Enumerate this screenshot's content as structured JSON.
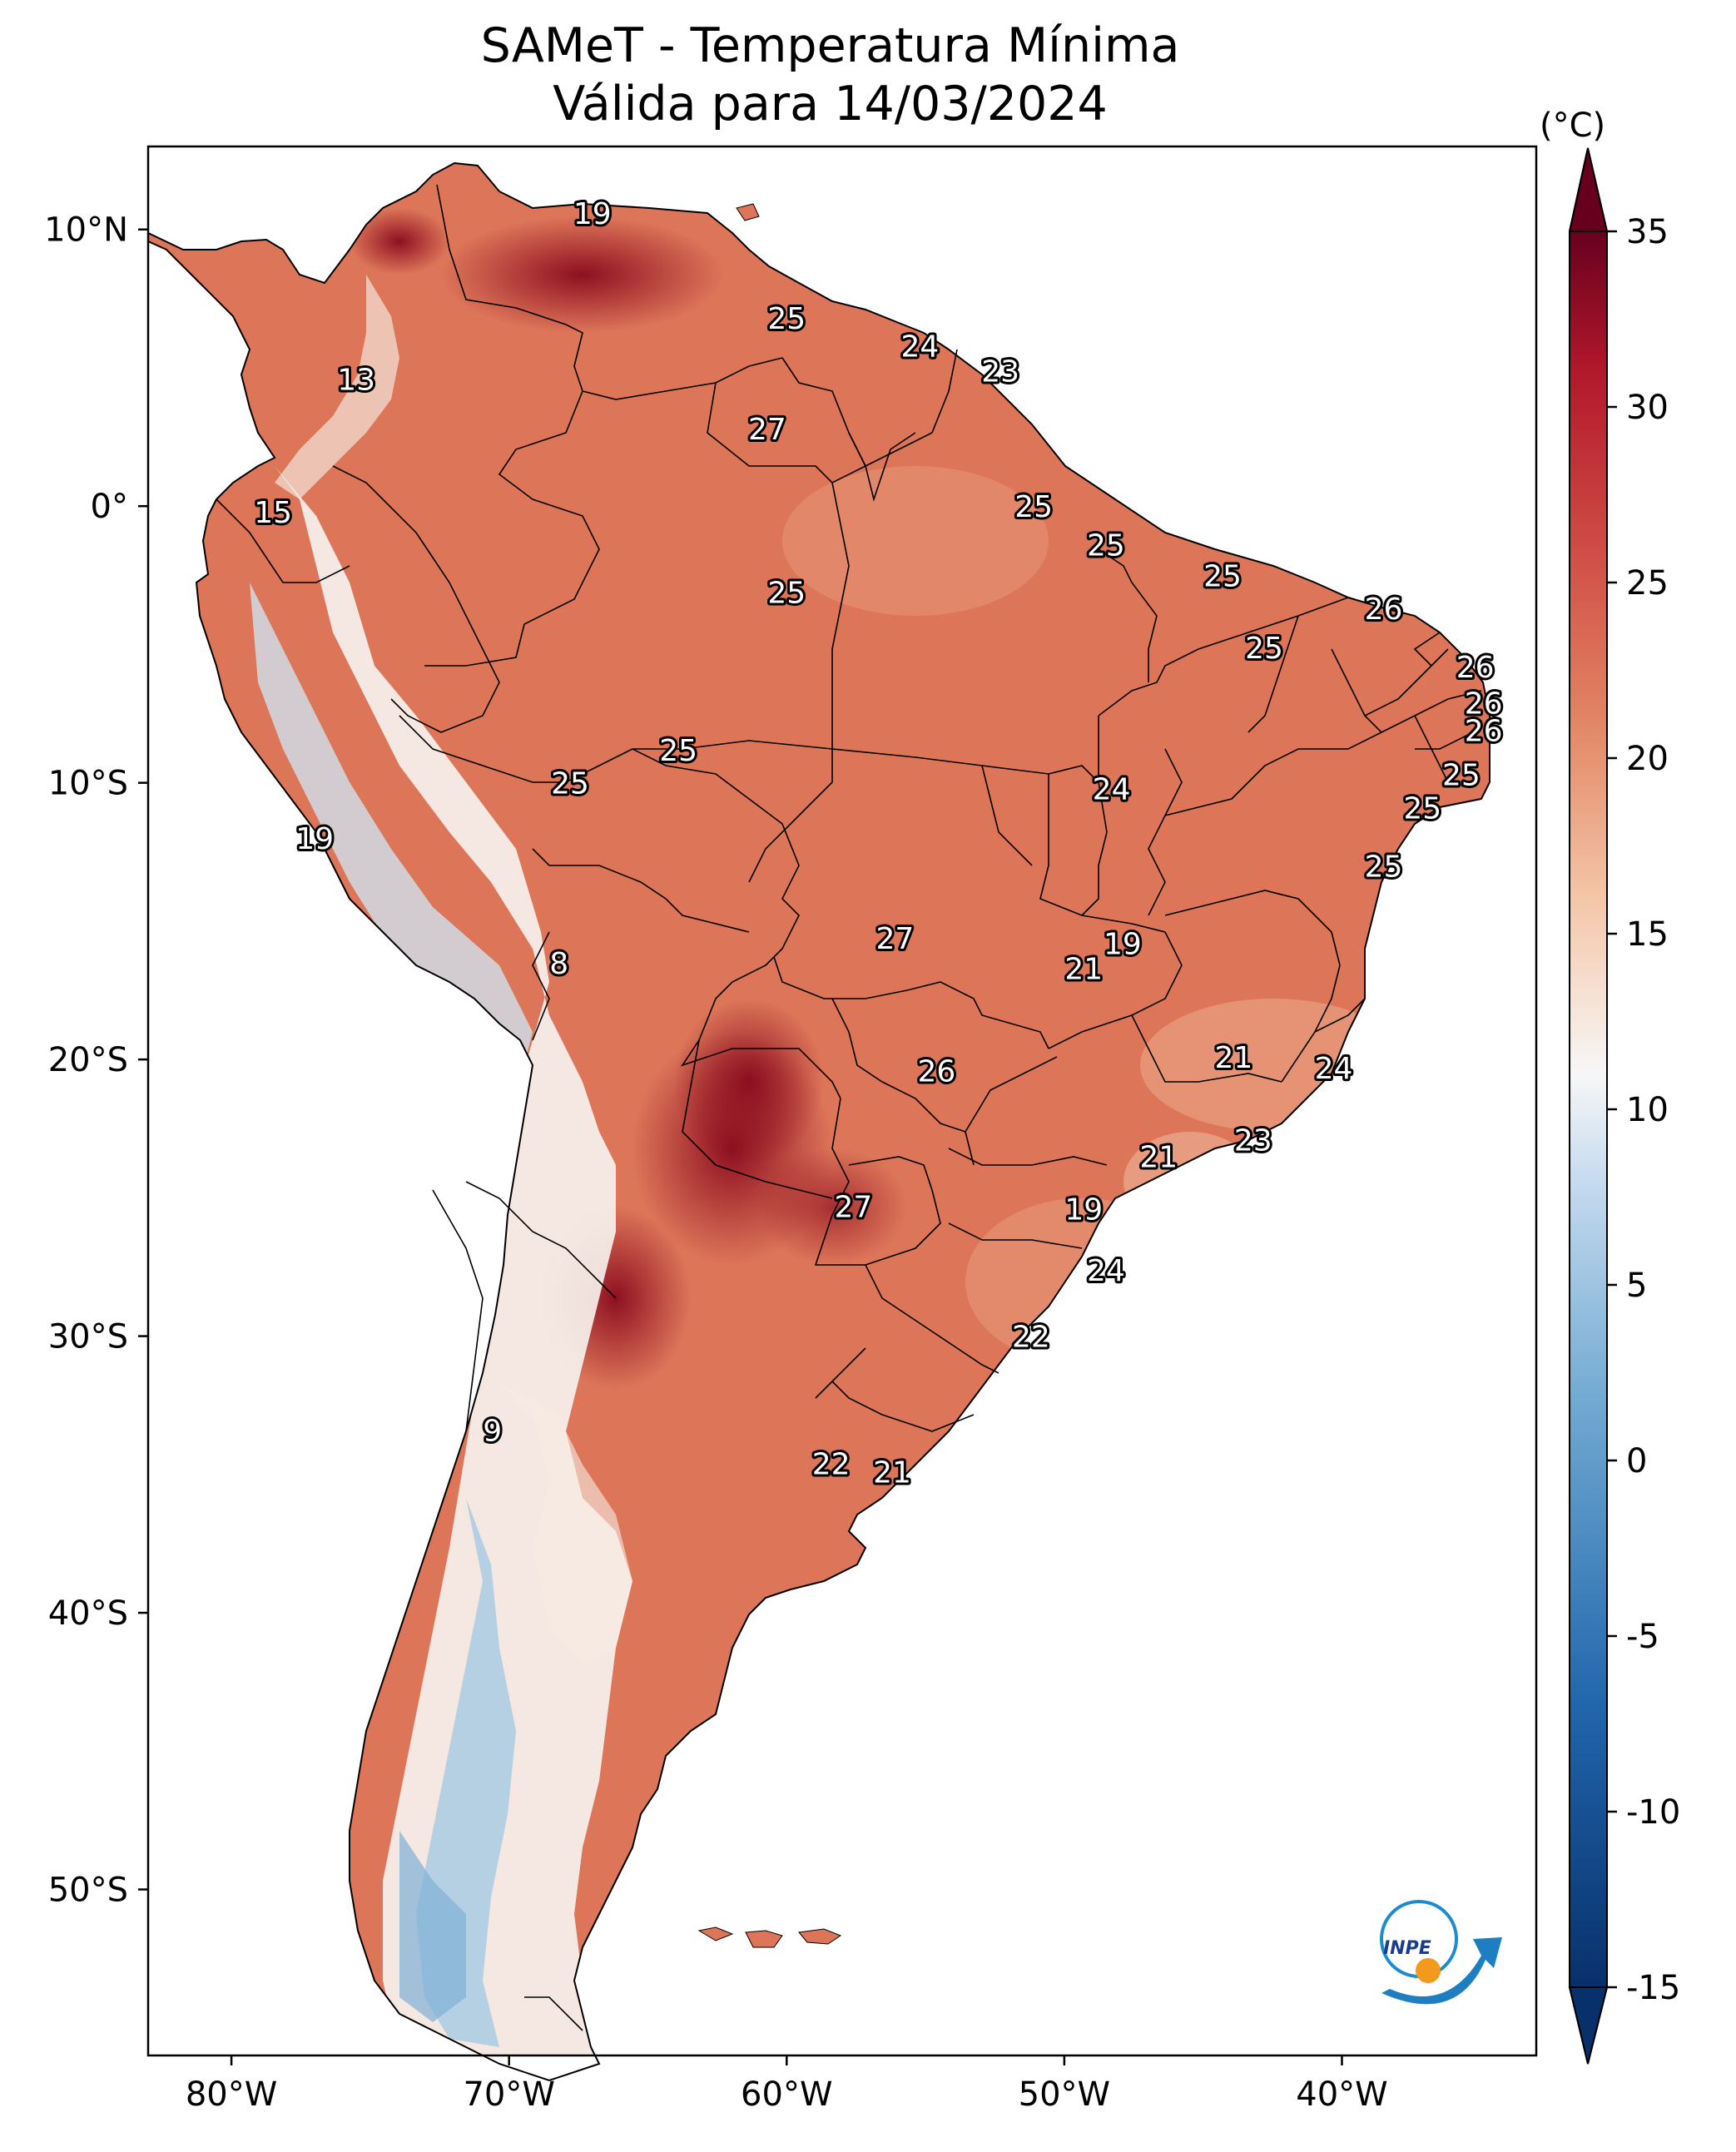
{
  "title": {
    "line1": "SAMeT - Temperatura Mínima",
    "line2": "Válida para 14/03/2024"
  },
  "map": {
    "lon_ticks": [
      "80°W",
      "70°W",
      "60°W",
      "50°W",
      "40°W"
    ],
    "lat_ticks": [
      "10°N",
      "0°",
      "10°S",
      "20°S",
      "30°S",
      "40°S",
      "50°S"
    ],
    "values": [
      {
        "lon": -67.0,
        "lat": 10.6,
        "v": "19"
      },
      {
        "lon": -75.5,
        "lat": 4.6,
        "v": "13"
      },
      {
        "lon": -78.5,
        "lat": -0.2,
        "v": "15"
      },
      {
        "lon": -60.0,
        "lat": 6.8,
        "v": "25"
      },
      {
        "lon": -55.2,
        "lat": 5.8,
        "v": "24"
      },
      {
        "lon": -52.3,
        "lat": 4.9,
        "v": "23"
      },
      {
        "lon": -60.7,
        "lat": 2.8,
        "v": "27"
      },
      {
        "lon": -51.1,
        "lat": 0.0,
        "v": "25"
      },
      {
        "lon": -60.0,
        "lat": -3.1,
        "v": "25"
      },
      {
        "lon": -48.5,
        "lat": -1.4,
        "v": "25"
      },
      {
        "lon": -44.3,
        "lat": -2.5,
        "v": "25"
      },
      {
        "lon": -42.8,
        "lat": -5.1,
        "v": "25"
      },
      {
        "lon": -38.5,
        "lat": -3.7,
        "v": "26"
      },
      {
        "lon": -35.2,
        "lat": -5.8,
        "v": "26"
      },
      {
        "lon": -34.9,
        "lat": -7.1,
        "v": "26"
      },
      {
        "lon": -34.9,
        "lat": -8.1,
        "v": "26"
      },
      {
        "lon": -35.7,
        "lat": -9.7,
        "v": "25"
      },
      {
        "lon": -37.1,
        "lat": -10.9,
        "v": "25"
      },
      {
        "lon": -38.5,
        "lat": -13.0,
        "v": "25"
      },
      {
        "lon": -48.3,
        "lat": -10.2,
        "v": "24"
      },
      {
        "lon": -63.9,
        "lat": -8.8,
        "v": "25"
      },
      {
        "lon": -67.8,
        "lat": -10.0,
        "v": "25"
      },
      {
        "lon": -77.0,
        "lat": -12.0,
        "v": "19"
      },
      {
        "lon": -68.2,
        "lat": -16.5,
        "v": "8"
      },
      {
        "lon": -56.1,
        "lat": -15.6,
        "v": "27"
      },
      {
        "lon": -49.3,
        "lat": -16.7,
        "v": "21"
      },
      {
        "lon": -47.9,
        "lat": -15.8,
        "v": "19"
      },
      {
        "lon": -54.6,
        "lat": -20.4,
        "v": "26"
      },
      {
        "lon": -43.9,
        "lat": -19.9,
        "v": "21"
      },
      {
        "lon": -40.3,
        "lat": -20.3,
        "v": "24"
      },
      {
        "lon": -46.6,
        "lat": -23.5,
        "v": "21"
      },
      {
        "lon": -43.2,
        "lat": -22.9,
        "v": "23"
      },
      {
        "lon": -57.6,
        "lat": -25.3,
        "v": "27"
      },
      {
        "lon": -49.3,
        "lat": -25.4,
        "v": "19"
      },
      {
        "lon": -48.5,
        "lat": -27.6,
        "v": "24"
      },
      {
        "lon": -51.2,
        "lat": -30.0,
        "v": "22"
      },
      {
        "lon": -70.6,
        "lat": -33.4,
        "v": "9"
      },
      {
        "lon": -58.4,
        "lat": -34.6,
        "v": "22"
      },
      {
        "lon": -56.2,
        "lat": -34.9,
        "v": "21"
      }
    ]
  },
  "colorbar": {
    "unit": "(°C)",
    "ticks": [
      "-15",
      "-10",
      "-5",
      "0",
      "5",
      "10",
      "15",
      "20",
      "25",
      "30",
      "35"
    ]
  },
  "logo": {
    "text": "INPE"
  }
}
